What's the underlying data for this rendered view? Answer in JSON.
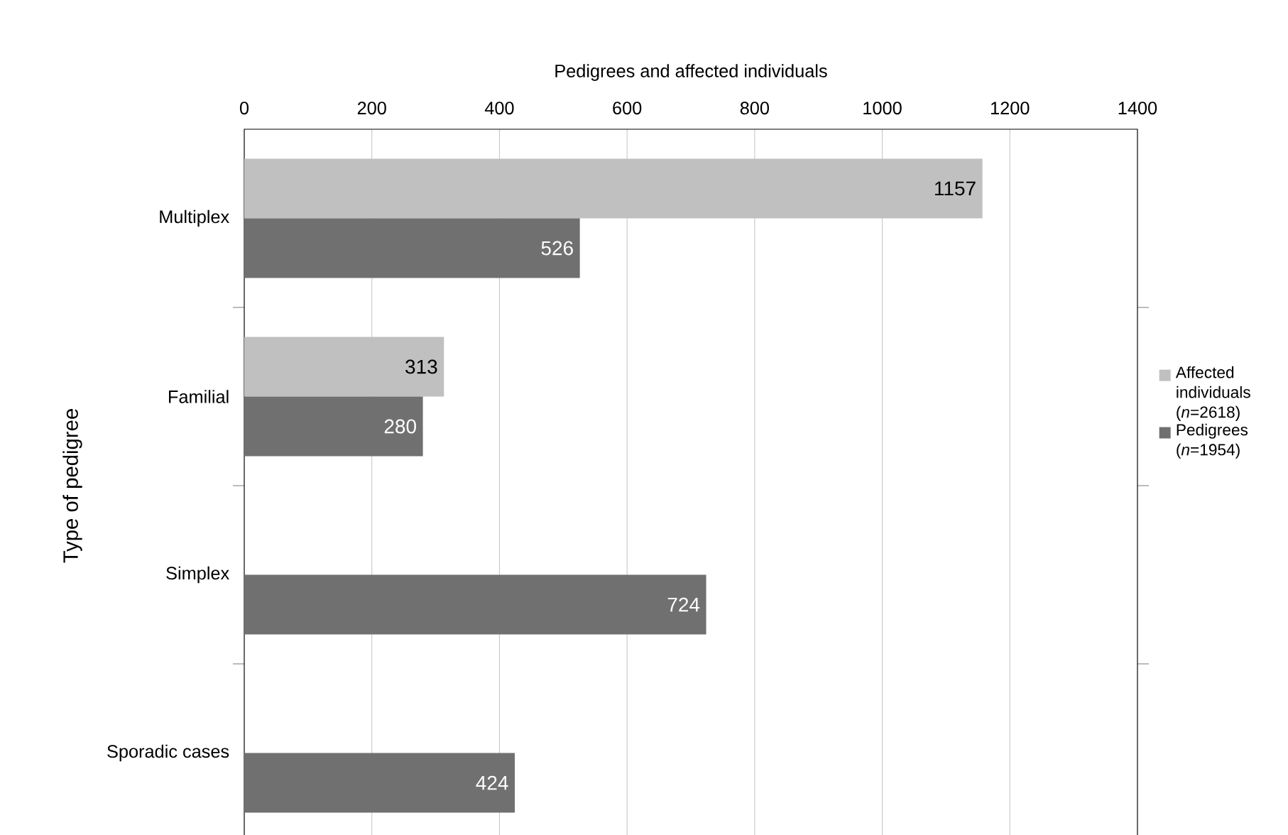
{
  "chart_data": {
    "type": "bar",
    "orientation": "horizontal",
    "xlabel": "Pedigrees and affected individuals",
    "ylabel": "Type of pedigree",
    "categories": [
      "Multiplex",
      "Familial",
      "Simplex",
      "Sporadic cases"
    ],
    "series": [
      {
        "name": "Affected individuals (*n*=2618)",
        "color": "#c0c0c0",
        "values": [
          1157,
          313,
          null,
          null
        ]
      },
      {
        "name": "Pedigrees (*n*=1954)",
        "color": "#707070",
        "values": [
          526,
          280,
          724,
          424
        ]
      }
    ],
    "xlim": [
      0,
      1400
    ],
    "xticks": [
      0,
      200,
      400,
      600,
      800,
      1000,
      1200,
      1400
    ],
    "grid": "x",
    "legend": "right",
    "data_labels": true
  }
}
